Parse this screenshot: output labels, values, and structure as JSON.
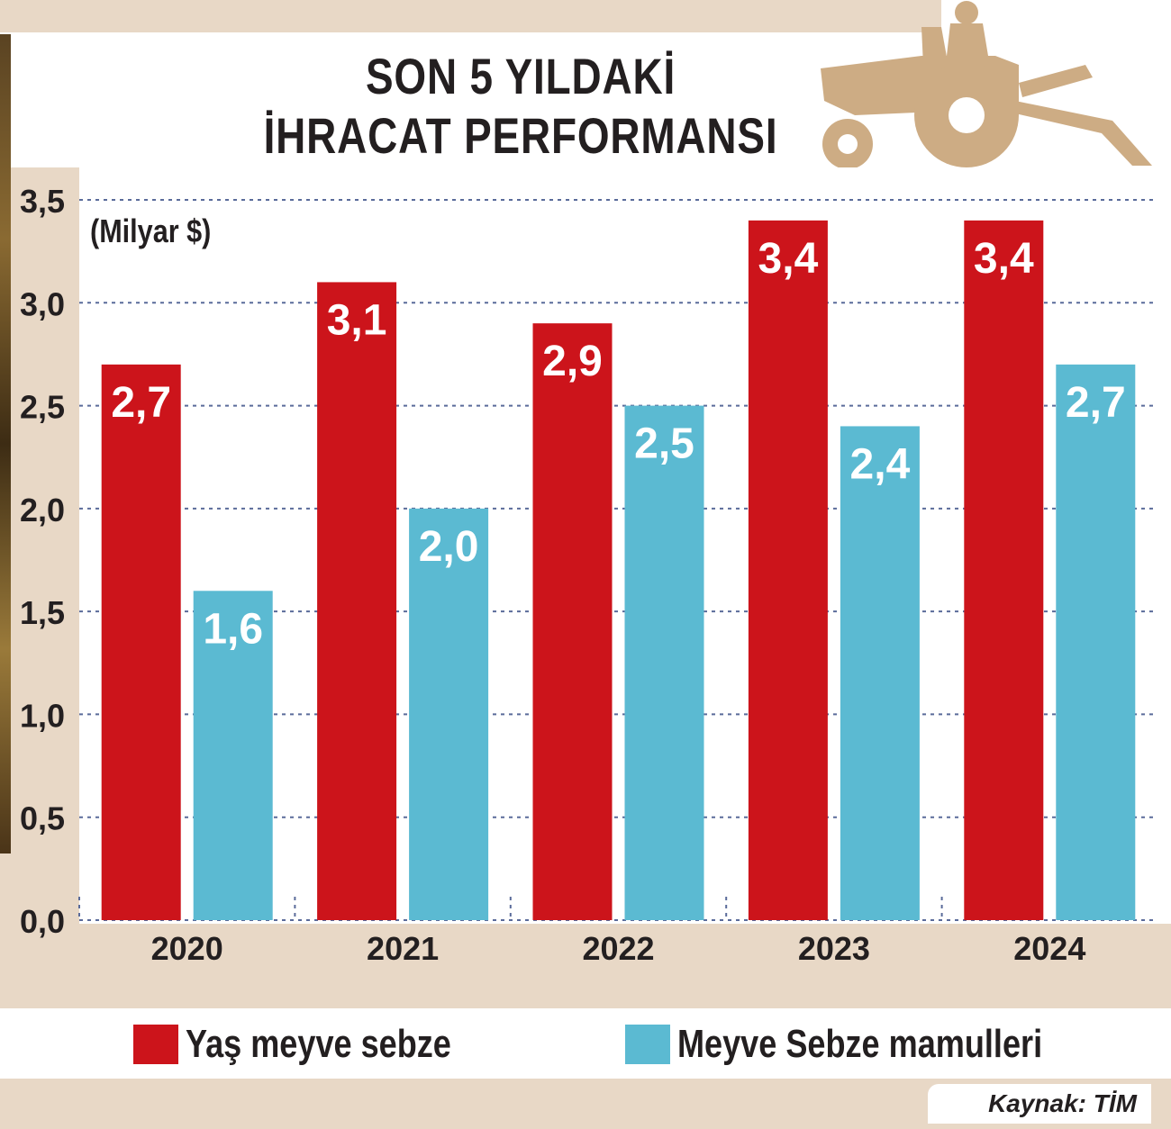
{
  "title": {
    "line1": "SON 5 YILDAKİ",
    "line2": "İHRACAT PERFORMANSI"
  },
  "unit": "(Milyar $)",
  "source": "Kaynak: TİM",
  "colors": {
    "series1": "#cc141b",
    "series2": "#5bbad2",
    "background": "#e8d8c6",
    "grid": "#5a6b9a"
  },
  "icons": [
    "tractor-icon"
  ],
  "chart_data": {
    "type": "bar",
    "categories": [
      "2020",
      "2021",
      "2022",
      "2023",
      "2024"
    ],
    "series": [
      {
        "name": "Yaş meyve sebze",
        "values": [
          2.7,
          3.1,
          2.9,
          3.4,
          3.4
        ],
        "labels": [
          "2,7",
          "3,1",
          "2,9",
          "3,4",
          "3,4"
        ]
      },
      {
        "name": "Meyve Sebze mamulleri",
        "values": [
          1.6,
          2.0,
          2.5,
          2.4,
          2.7
        ],
        "labels": [
          "1,6",
          "2,0",
          "2,5",
          "2,4",
          "2,7"
        ]
      }
    ],
    "y_ticks": [
      "0,0",
      "0,5",
      "1,0",
      "1,5",
      "2,0",
      "2,5",
      "3,0",
      "3,5"
    ],
    "ylim": [
      0,
      3.5
    ],
    "grid": true,
    "legend": "bottom"
  }
}
